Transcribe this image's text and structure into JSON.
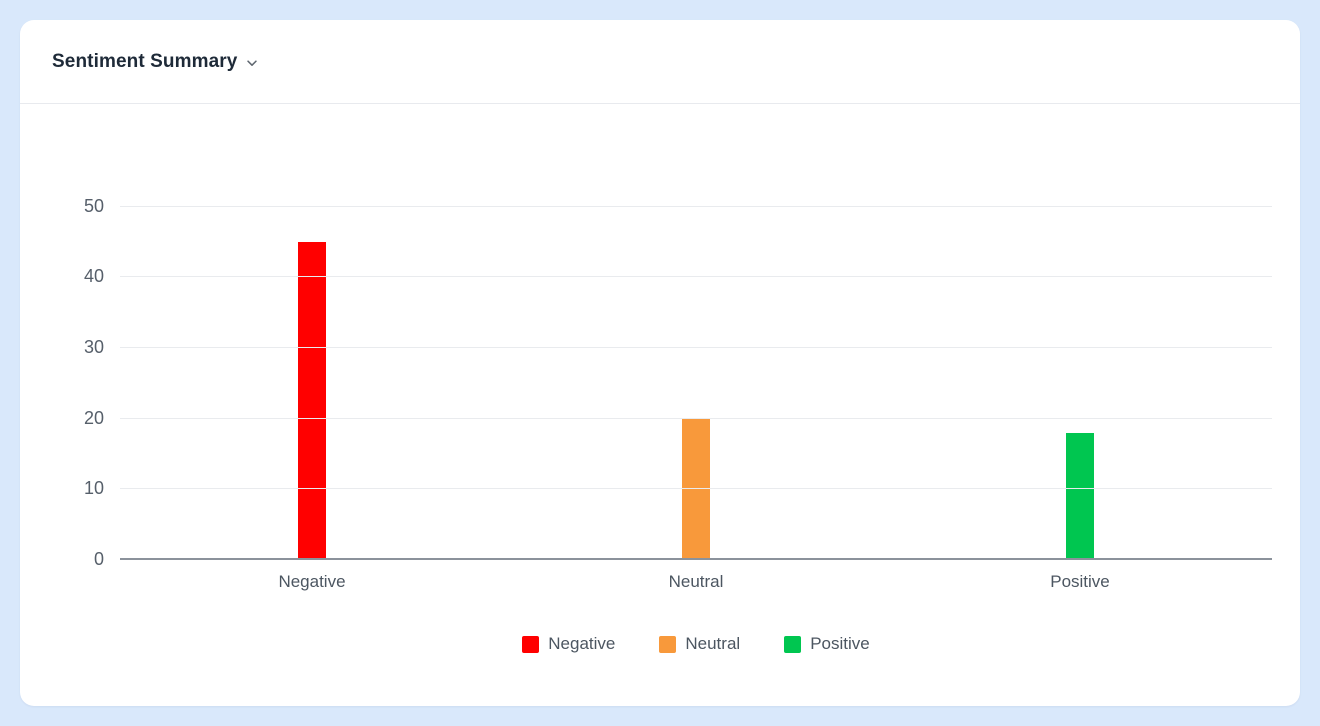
{
  "page": {
    "background_color": "#d9e8fb"
  },
  "card": {
    "title": "Sentiment Summary",
    "chevron_icon": "chevron-down"
  },
  "chart_data": {
    "type": "bar",
    "title": "Sentiment Summary",
    "categories": [
      "Negative",
      "Neutral",
      "Positive"
    ],
    "values": [
      45,
      20,
      18
    ],
    "colors": [
      "#ff0000",
      "#f8993b",
      "#00c650"
    ],
    "xlabel": "",
    "ylabel": "",
    "yticks": [
      0,
      10,
      20,
      30,
      40,
      50
    ],
    "ylim": [
      0,
      58
    ],
    "grid": true,
    "legend_position": "bottom",
    "legend": [
      {
        "label": "Negative",
        "color": "#ff0000"
      },
      {
        "label": "Neutral",
        "color": "#f8993b"
      },
      {
        "label": "Positive",
        "color": "#00c650"
      }
    ]
  }
}
